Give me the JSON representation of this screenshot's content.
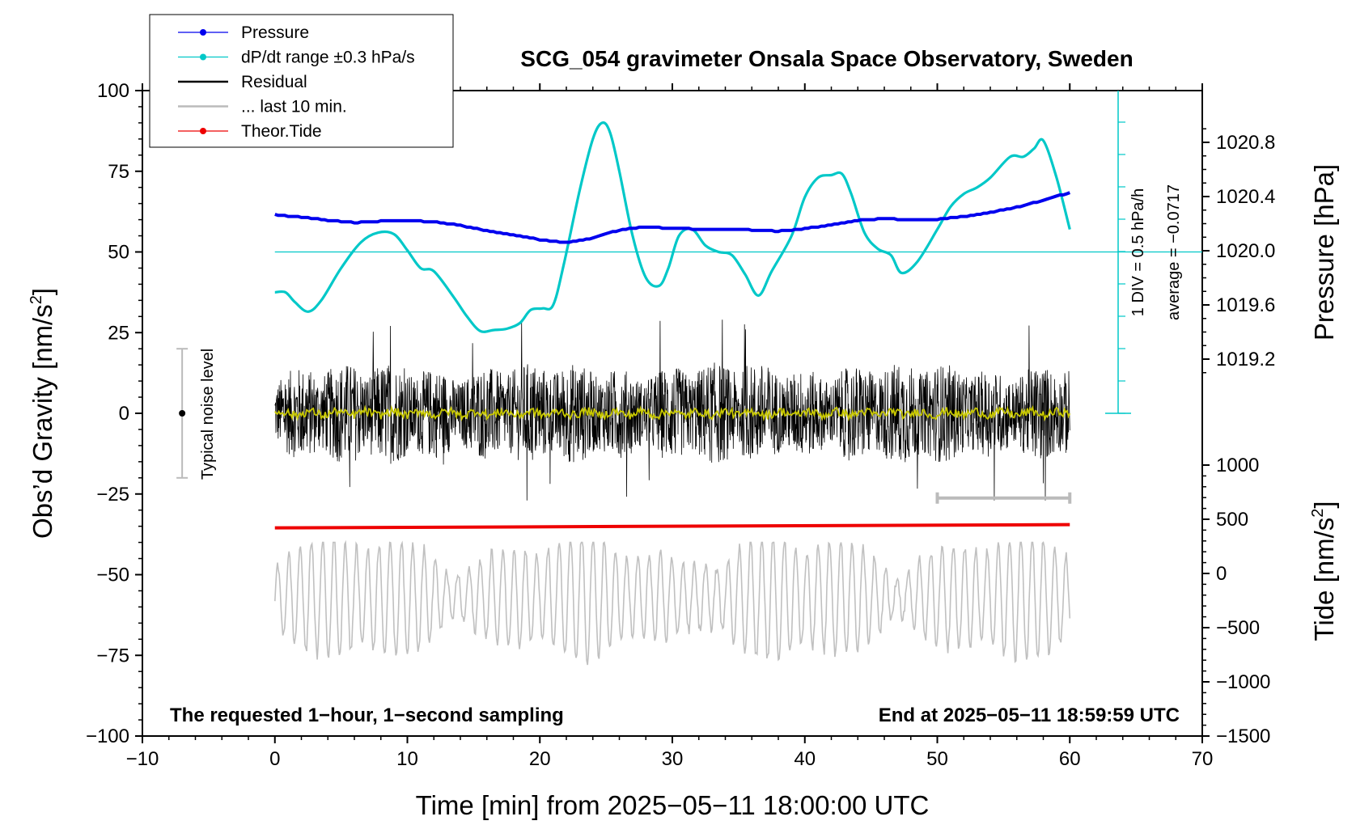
{
  "chart_data": {
    "type": "line",
    "title": "SCG_054 gravimeter Onsala Space Observatory, Sweden",
    "xlabel": "Time [min] from 2025−05−11 18:00:00 UTC",
    "ylabel_left": "Obs’d Gravity [nm/s",
    "ylabel_left_sup": "2",
    "ylabel_left_end": "]",
    "ylabel_right_top": "Pressure [hPa]",
    "ylabel_right_bottom": "Tide [nm/s",
    "ylabel_right_bottom_sup": "2",
    "ylabel_right_bottom_end": "]",
    "xlim": [
      -10,
      70
    ],
    "ylim": [
      -100,
      100
    ],
    "x_ticks": [
      {
        "v": -10,
        "label": "−10"
      },
      {
        "v": 0,
        "label": "0"
      },
      {
        "v": 10,
        "label": "10"
      },
      {
        "v": 20,
        "label": "20"
      },
      {
        "v": 30,
        "label": "30"
      },
      {
        "v": 40,
        "label": "40"
      },
      {
        "v": 50,
        "label": "50"
      },
      {
        "v": 60,
        "label": "60"
      },
      {
        "v": 70,
        "label": "70"
      }
    ],
    "y_ticks": [
      {
        "v": 100,
        "label": "100"
      },
      {
        "v": 75,
        "label": "75"
      },
      {
        "v": 50,
        "label": "50"
      },
      {
        "v": 25,
        "label": "25"
      },
      {
        "v": 0,
        "label": "0"
      },
      {
        "v": -25,
        "label": "−25"
      },
      {
        "v": -50,
        "label": "−50"
      },
      {
        "v": -75,
        "label": "−75"
      },
      {
        "v": -100,
        "label": "−100"
      }
    ],
    "pressure_axis": {
      "range_hPa": [
        1019.2,
        1020.8
      ],
      "ticks": [
        {
          "v": 1020.8,
          "label": "1020.8"
        },
        {
          "v": 1020.4,
          "label": "1020.4"
        },
        {
          "v": 1020.0,
          "label": "1020.0"
        },
        {
          "v": 1019.6,
          "label": "1019.6"
        },
        {
          "v": 1019.2,
          "label": "1019.2"
        }
      ]
    },
    "tide_axis": {
      "range": [
        -1500,
        1000
      ],
      "ticks": [
        {
          "v": 1000,
          "label": "1000"
        },
        {
          "v": 500,
          "label": "500"
        },
        {
          "v": 0,
          "label": "0"
        },
        {
          "v": -500,
          "label": "−500"
        },
        {
          "v": -1000,
          "label": "−1000"
        },
        {
          "v": -1500,
          "label": "−1500"
        }
      ]
    },
    "legend_placement": "top-left",
    "legend": [
      {
        "name": "Pressure",
        "color": "#0000ee",
        "marker": true
      },
      {
        "name": "dP/dt range ±0.3 hPa/s",
        "color": "#00c8c8",
        "marker": true
      },
      {
        "name": "Residual",
        "color": "#000000",
        "marker": false
      },
      {
        "name": "... last 10 min.",
        "color": "#bbbbbb",
        "marker": false
      },
      {
        "name": "Theor.Tide",
        "color": "#ee0000",
        "marker": true
      }
    ],
    "pressure_series": {
      "name": "Pressure",
      "color": "#0000ee",
      "x": [
        0,
        2,
        4,
        6,
        8,
        10,
        12,
        14,
        16,
        18,
        20,
        22,
        24,
        26,
        28,
        30,
        32,
        34,
        36,
        38,
        40,
        42,
        44,
        46,
        48,
        50,
        52,
        54,
        56,
        58,
        60
      ],
      "y": [
        61.5,
        60.8,
        59.8,
        59.1,
        59.5,
        59.6,
        59.4,
        58.2,
        56.6,
        55.3,
        53.8,
        52.9,
        54.3,
        56.8,
        57.8,
        57.3,
        57.1,
        57.1,
        56.8,
        56.4,
        57.2,
        58.4,
        59.8,
        60.3,
        60.0,
        60.1,
        61.0,
        62.2,
        63.9,
        66.0,
        68.4
      ]
    },
    "dpdt_series": {
      "name": "dP/dt range ±0.3 hPa/s",
      "color": "#00c8c8",
      "x": [
        0,
        0.8,
        1.5,
        2.5,
        3.5,
        5,
        6.5,
        7.8,
        9,
        10,
        11,
        12,
        13.5,
        14.5,
        15.5,
        16.5,
        17.5,
        18.5,
        19.3,
        20.2,
        21,
        21.8,
        23,
        24,
        24.7,
        25.3,
        26,
        27,
        28,
        29,
        29.7,
        30.5,
        31.5,
        32.5,
        33.5,
        34.5,
        35.5,
        36.5,
        37.5,
        39,
        40,
        41,
        42,
        42.8,
        43.5,
        44.5,
        45.5,
        46.5,
        47.3,
        48.5,
        50,
        51,
        52,
        53,
        54,
        55.5,
        56.5,
        57.3,
        58,
        59,
        60
      ],
      "y": [
        37.5,
        37.5,
        34.5,
        31.5,
        35,
        45,
        53,
        56,
        55.5,
        50.5,
        45,
        44,
        36,
        30,
        25.5,
        25.8,
        26.2,
        28,
        32,
        32.5,
        33.5,
        46,
        69,
        85,
        90,
        87,
        75,
        55,
        42,
        39.5,
        45,
        55,
        57,
        52,
        50,
        49,
        43,
        36.5,
        44,
        55,
        67,
        73,
        73.8,
        74.2,
        68,
        56,
        51,
        49,
        43.5,
        47,
        57,
        64,
        68,
        70,
        73,
        79.5,
        79.5,
        82,
        84.5,
        73,
        57
      ]
    },
    "dpdt_reference_level": 50,
    "pressure_scale_bar": {
      "label": "1 DIV = 0.5 hPa/h",
      "average_label": "average = −0.0717"
    },
    "residual_series": {
      "name": "Residual",
      "color": "#000000",
      "amplitude_range": [
        -27,
        29
      ],
      "x_range": [
        0,
        60
      ]
    },
    "last10_series": {
      "name": "... last 10 min.",
      "color": "#bbbbbb",
      "x_range": [
        50,
        60
      ],
      "y": -25
    },
    "smoothed_residual": {
      "color": "#c8c800",
      "level": 0
    },
    "tide_series": {
      "name": "Theor.Tide",
      "color": "#ee0000",
      "x": [
        0,
        60
      ],
      "y": [
        -35.5,
        -34.5
      ]
    },
    "tide_residual_gray": {
      "color": "#c0c0c0",
      "center": -57,
      "amplitude_range": [
        -86,
        -40
      ]
    },
    "noise_level": {
      "label": "Typical noise level",
      "x": -7,
      "range": [
        -20,
        20
      ]
    },
    "note_left": "The requested 1−hour, 1−second sampling",
    "note_right": "End at 2025−05−11 18:59:59 UTC"
  }
}
